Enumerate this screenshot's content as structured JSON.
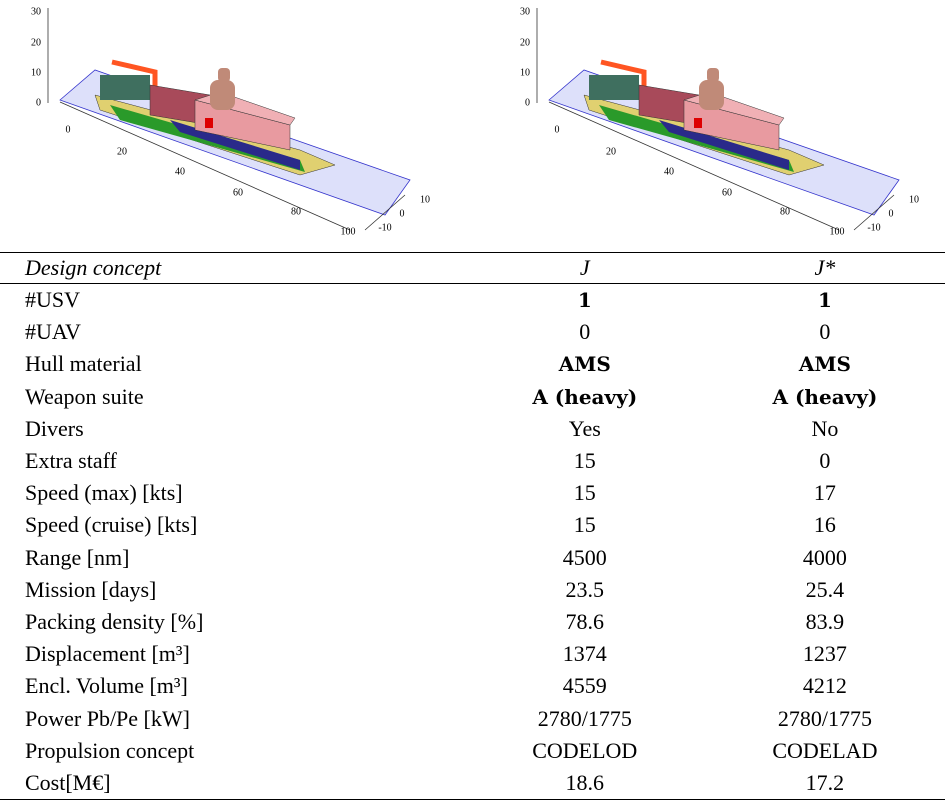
{
  "figures": [
    {
      "z_ticks": [
        "30",
        "20",
        "10",
        "0"
      ],
      "x_ticks": [
        "0",
        "20",
        "40",
        "60",
        "80",
        "100"
      ],
      "y_ticks": [
        "10",
        "0",
        "-10"
      ]
    },
    {
      "z_ticks": [
        "30",
        "20",
        "10",
        "0"
      ],
      "x_ticks": [
        "0",
        "20",
        "40",
        "60",
        "80",
        "100"
      ],
      "y_ticks": [
        "10",
        "0",
        "-10"
      ]
    }
  ],
  "table": {
    "header": [
      "Design concept",
      "J",
      "J*"
    ],
    "rows": [
      {
        "label": "#USV",
        "values": [
          "1",
          "1"
        ],
        "bold": true
      },
      {
        "label": "#UAV",
        "values": [
          "0",
          "0"
        ]
      },
      {
        "label": "Hull material",
        "values": [
          "AMS",
          "AMS"
        ],
        "bold": true
      },
      {
        "label": "Weapon suite",
        "values": [
          "A (heavy)",
          "A (heavy)"
        ],
        "bold": true
      },
      {
        "label": "Divers",
        "values": [
          "Yes",
          "No"
        ]
      },
      {
        "label": "Extra staff",
        "values": [
          "15",
          "0"
        ]
      },
      {
        "label": "Speed (max) [kts]",
        "values": [
          "15",
          "17"
        ]
      },
      {
        "label": "Speed (cruise) [kts]",
        "values": [
          "15",
          "16"
        ]
      },
      {
        "label": "Range [nm]",
        "values": [
          "4500",
          "4000"
        ]
      },
      {
        "label": "Mission [days]",
        "values": [
          "23.5",
          "25.4"
        ]
      },
      {
        "label": "Packing density [%]",
        "values": [
          "78.6",
          "83.9"
        ]
      },
      {
        "label": "Displacement [m³]",
        "values": [
          "1374",
          "1237"
        ]
      },
      {
        "label": "Encl. Volume [m³]",
        "values": [
          "4559",
          "4212"
        ]
      },
      {
        "label": "Power Pb/Pe [kW]",
        "values": [
          "2780/1775",
          "2780/1775"
        ]
      },
      {
        "label": "Propulsion concept",
        "values": [
          "CODELOD",
          "CODELAD"
        ]
      },
      {
        "label": "Cost[M€]",
        "values": [
          "18.6",
          "17.2"
        ]
      }
    ]
  }
}
